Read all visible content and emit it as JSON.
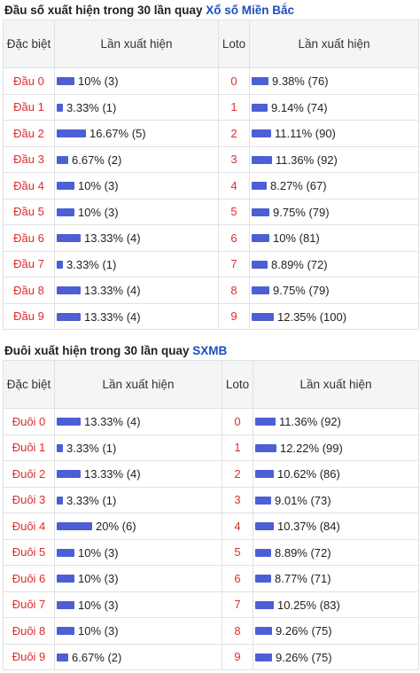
{
  "section1": {
    "title_prefix": "Đầu số xuất hiện trong 30 lần quay ",
    "title_link": "Xổ số Miền Bắc",
    "headers": {
      "col1": "Đặc biệt",
      "col2": "Lần xuất hiện",
      "col3": "Loto",
      "col4": "Lần xuất hiện"
    },
    "rows": [
      {
        "name": "Đầu 0",
        "pct": "10% (3)",
        "ratio": 0.1,
        "loto": "0",
        "loto_pct": "9.38% (76)",
        "loto_ratio": 0.0938
      },
      {
        "name": "Đầu 1",
        "pct": "3.33% (1)",
        "ratio": 0.0333,
        "loto": "1",
        "loto_pct": "9.14% (74)",
        "loto_ratio": 0.0914
      },
      {
        "name": "Đầu 2",
        "pct": "16.67% (5)",
        "ratio": 0.1667,
        "loto": "2",
        "loto_pct": "11.11% (90)",
        "loto_ratio": 0.1111
      },
      {
        "name": "Đầu 3",
        "pct": "6.67% (2)",
        "ratio": 0.0667,
        "loto": "3",
        "loto_pct": "11.36% (92)",
        "loto_ratio": 0.1136
      },
      {
        "name": "Đầu 4",
        "pct": "10% (3)",
        "ratio": 0.1,
        "loto": "4",
        "loto_pct": "8.27% (67)",
        "loto_ratio": 0.0827
      },
      {
        "name": "Đầu 5",
        "pct": "10% (3)",
        "ratio": 0.1,
        "loto": "5",
        "loto_pct": "9.75% (79)",
        "loto_ratio": 0.0975
      },
      {
        "name": "Đầu 6",
        "pct": "13.33% (4)",
        "ratio": 0.1333,
        "loto": "6",
        "loto_pct": "10% (81)",
        "loto_ratio": 0.1
      },
      {
        "name": "Đầu 7",
        "pct": "3.33% (1)",
        "ratio": 0.0333,
        "loto": "7",
        "loto_pct": "8.89% (72)",
        "loto_ratio": 0.0889
      },
      {
        "name": "Đầu 8",
        "pct": "13.33% (4)",
        "ratio": 0.1333,
        "loto": "8",
        "loto_pct": "9.75% (79)",
        "loto_ratio": 0.0975
      },
      {
        "name": "Đầu 9",
        "pct": "13.33% (4)",
        "ratio": 0.1333,
        "loto": "9",
        "loto_pct": "12.35% (100)",
        "loto_ratio": 0.1235
      }
    ]
  },
  "section2": {
    "title_prefix": "Đuôi xuất hiện trong 30 lần quay ",
    "title_link": "SXMB",
    "headers": {
      "col1": "Đặc biệt",
      "col2": "Lần xuất hiện",
      "col3": "Loto",
      "col4": "Lần xuất hiện"
    },
    "rows": [
      {
        "name": "Đuôi 0",
        "pct": "13.33% (4)",
        "ratio": 0.1333,
        "loto": "0",
        "loto_pct": "11.36% (92)",
        "loto_ratio": 0.1136
      },
      {
        "name": "Đuôi 1",
        "pct": "3.33% (1)",
        "ratio": 0.0333,
        "loto": "1",
        "loto_pct": "12.22% (99)",
        "loto_ratio": 0.1222
      },
      {
        "name": "Đuôi 2",
        "pct": "13.33% (4)",
        "ratio": 0.1333,
        "loto": "2",
        "loto_pct": "10.62% (86)",
        "loto_ratio": 0.1062
      },
      {
        "name": "Đuôi 3",
        "pct": "3.33% (1)",
        "ratio": 0.0333,
        "loto": "3",
        "loto_pct": "9.01% (73)",
        "loto_ratio": 0.0901
      },
      {
        "name": "Đuôi 4",
        "pct": "20% (6)",
        "ratio": 0.2,
        "loto": "4",
        "loto_pct": "10.37% (84)",
        "loto_ratio": 0.1037
      },
      {
        "name": "Đuôi 5",
        "pct": "10% (3)",
        "ratio": 0.1,
        "loto": "5",
        "loto_pct": "8.89% (72)",
        "loto_ratio": 0.0889
      },
      {
        "name": "Đuôi 6",
        "pct": "10% (3)",
        "ratio": 0.1,
        "loto": "6",
        "loto_pct": "8.77% (71)",
        "loto_ratio": 0.0877
      },
      {
        "name": "Đuôi 7",
        "pct": "10% (3)",
        "ratio": 0.1,
        "loto": "7",
        "loto_pct": "10.25% (83)",
        "loto_ratio": 0.1025
      },
      {
        "name": "Đuôi 8",
        "pct": "10% (3)",
        "ratio": 0.1,
        "loto": "8",
        "loto_pct": "9.26% (75)",
        "loto_ratio": 0.0926
      },
      {
        "name": "Đuôi 9",
        "pct": "6.67% (2)",
        "ratio": 0.0667,
        "loto": "9",
        "loto_pct": "9.26% (75)",
        "loto_ratio": 0.0926
      }
    ]
  },
  "colors": {
    "bar": "#4c5fd5",
    "label_red": "#e02b2b",
    "link_blue": "#1a4fc1",
    "header_bg": "#f4f5f7"
  }
}
